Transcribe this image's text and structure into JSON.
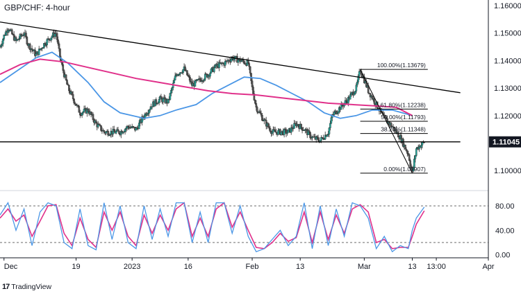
{
  "chart_data": {
    "type": "candlestick",
    "title": "GBP/CHF: 4-hour",
    "price_axis": {
      "ylim": [
        1.0935,
        1.162
      ],
      "ticks": [
        {
          "value": 1.16,
          "label": "1.16000"
        },
        {
          "value": 1.15,
          "label": "1.15000"
        },
        {
          "value": 1.14,
          "label": "1.14000"
        },
        {
          "value": 1.13,
          "label": "1.13000"
        },
        {
          "value": 1.12,
          "label": "1.12000"
        },
        {
          "value": 1.1,
          "label": "1.10000"
        }
      ],
      "current_price": {
        "value": 1.11045,
        "label": "1.11045"
      }
    },
    "time_axis": {
      "range": [
        "2022-11-30",
        "2023-04-01"
      ],
      "ticks": [
        {
          "date": "2022-12-01",
          "label": "Dec"
        },
        {
          "date": "2022-12-19",
          "label": "19"
        },
        {
          "date": "2023-01-02",
          "label": "2023"
        },
        {
          "date": "2023-01-16",
          "label": "16"
        },
        {
          "date": "2023-02-01",
          "label": "Feb"
        },
        {
          "date": "2023-02-13",
          "label": "13"
        },
        {
          "date": "2023-03-01",
          "label": "Mar"
        },
        {
          "date": "2023-03-13",
          "label": "13"
        },
        {
          "date": "2023-03-19",
          "label": "13:00"
        },
        {
          "date": "2023-04-01",
          "label": "Apr"
        }
      ]
    },
    "price_path": [
      [
        "2022-11-30",
        1.145
      ],
      [
        "2022-12-01",
        1.149
      ],
      [
        "2022-12-02",
        1.152
      ],
      [
        "2022-12-04",
        1.147
      ],
      [
        "2022-12-06",
        1.15
      ],
      [
        "2022-12-07",
        1.146
      ],
      [
        "2022-12-09",
        1.142
      ],
      [
        "2022-12-11",
        1.146
      ],
      [
        "2022-12-13",
        1.149
      ],
      [
        "2022-12-14",
        1.15
      ],
      [
        "2022-12-15",
        1.141
      ],
      [
        "2022-12-16",
        1.135
      ],
      [
        "2022-12-17",
        1.13
      ],
      [
        "2022-12-18",
        1.127
      ],
      [
        "2022-12-20",
        1.121
      ],
      [
        "2022-12-22",
        1.122
      ],
      [
        "2022-12-24",
        1.117
      ],
      [
        "2022-12-26",
        1.114
      ],
      [
        "2022-12-28",
        1.114
      ],
      [
        "2022-12-30",
        1.114
      ],
      [
        "2023-01-01",
        1.116
      ],
      [
        "2023-01-03",
        1.115
      ],
      [
        "2023-01-05",
        1.12
      ],
      [
        "2023-01-07",
        1.124
      ],
      [
        "2023-01-09",
        1.126
      ],
      [
        "2023-01-11",
        1.125
      ],
      [
        "2023-01-13",
        1.135
      ],
      [
        "2023-01-15",
        1.137
      ],
      [
        "2023-01-17",
        1.131
      ],
      [
        "2023-01-19",
        1.133
      ],
      [
        "2023-01-21",
        1.135
      ],
      [
        "2023-01-23",
        1.138
      ],
      [
        "2023-01-25",
        1.139
      ],
      [
        "2023-01-27",
        1.141
      ],
      [
        "2023-01-29",
        1.14
      ],
      [
        "2023-01-31",
        1.139
      ],
      [
        "2023-02-01",
        1.13
      ],
      [
        "2023-02-02",
        1.123
      ],
      [
        "2023-02-04",
        1.118
      ],
      [
        "2023-02-06",
        1.114
      ],
      [
        "2023-02-08",
        1.114
      ],
      [
        "2023-02-10",
        1.114
      ],
      [
        "2023-02-12",
        1.117
      ],
      [
        "2023-02-14",
        1.115
      ],
      [
        "2023-02-16",
        1.112
      ],
      [
        "2023-02-18",
        1.111
      ],
      [
        "2023-02-20",
        1.114
      ],
      [
        "2023-02-21",
        1.12
      ],
      [
        "2023-02-23",
        1.123
      ],
      [
        "2023-02-25",
        1.126
      ],
      [
        "2023-02-27",
        1.13
      ],
      [
        "2023-02-28",
        1.1368
      ],
      [
        "2023-03-02",
        1.129
      ],
      [
        "2023-03-04",
        1.124
      ],
      [
        "2023-03-06",
        1.119
      ],
      [
        "2023-03-08",
        1.116
      ],
      [
        "2023-03-10",
        1.112
      ],
      [
        "2023-03-12",
        1.106
      ],
      [
        "2023-03-13",
        1.0991
      ],
      [
        "2023-03-14",
        1.108
      ],
      [
        "2023-03-16",
        1.1104
      ]
    ],
    "moving_averages": [
      {
        "name": "blue",
        "color": "#4a96e6",
        "points": [
          [
            "2022-11-30",
            1.132
          ],
          [
            "2022-12-05",
            1.137
          ],
          [
            "2022-12-09",
            1.141
          ],
          [
            "2022-12-13",
            1.143
          ],
          [
            "2022-12-17",
            1.139
          ],
          [
            "2022-12-22",
            1.132
          ],
          [
            "2022-12-26",
            1.125
          ],
          [
            "2022-12-30",
            1.121
          ],
          [
            "2023-01-05",
            1.119
          ],
          [
            "2023-01-09",
            1.12
          ],
          [
            "2023-01-13",
            1.122
          ],
          [
            "2023-01-18",
            1.124
          ],
          [
            "2023-01-22",
            1.128
          ],
          [
            "2023-01-26",
            1.131
          ],
          [
            "2023-01-30",
            1.134
          ],
          [
            "2023-02-03",
            1.1335
          ],
          [
            "2023-02-07",
            1.131
          ],
          [
            "2023-02-11",
            1.128
          ],
          [
            "2023-02-15",
            1.125
          ],
          [
            "2023-02-19",
            1.121
          ],
          [
            "2023-02-23",
            1.119
          ],
          [
            "2023-02-27",
            1.12
          ],
          [
            "2023-03-03",
            1.122
          ],
          [
            "2023-03-08",
            1.122
          ],
          [
            "2023-03-13",
            1.12
          ]
        ]
      },
      {
        "name": "magenta",
        "color": "#e0308a",
        "points": [
          [
            "2022-11-30",
            1.135
          ],
          [
            "2022-12-05",
            1.1385
          ],
          [
            "2022-12-10",
            1.1405
          ],
          [
            "2022-12-16",
            1.1395
          ],
          [
            "2022-12-22",
            1.1375
          ],
          [
            "2022-12-28",
            1.1355
          ],
          [
            "2023-01-03",
            1.1335
          ],
          [
            "2023-01-09",
            1.132
          ],
          [
            "2023-01-15",
            1.1305
          ],
          [
            "2023-01-21",
            1.129
          ],
          [
            "2023-01-27",
            1.128
          ],
          [
            "2023-02-02",
            1.1275
          ],
          [
            "2023-02-08",
            1.1265
          ],
          [
            "2023-02-14",
            1.1255
          ],
          [
            "2023-02-20",
            1.1245
          ],
          [
            "2023-02-26",
            1.124
          ],
          [
            "2023-03-04",
            1.1235
          ],
          [
            "2023-03-09",
            1.123
          ],
          [
            "2023-03-13",
            1.12
          ]
        ]
      }
    ],
    "trendlines": [
      {
        "name": "descending-resistance",
        "color": "#000000",
        "from": [
          "2022-11-30",
          1.154
        ],
        "to": [
          "2023-03-25",
          1.1283
        ]
      },
      {
        "name": "horizontal-support",
        "color": "#000000",
        "from": [
          "2022-11-30",
          1.11045
        ],
        "to": [
          "2023-03-25",
          1.11045
        ]
      }
    ],
    "fibonacci": {
      "high": 1.13679,
      "low": 1.09907,
      "levels": [
        {
          "ratio": "100.00%",
          "value": 1.13679,
          "label": "100.00%(1.13679)"
        },
        {
          "ratio": "61.80%",
          "value": 1.12238,
          "label": "61.80%(1.12238)"
        },
        {
          "ratio": "50.00%",
          "value": 1.11793,
          "label": "50.00%(1.11793)"
        },
        {
          "ratio": "38.20%",
          "value": 1.11348,
          "label": "38.20%(1.11348)"
        },
        {
          "ratio": "0.00%",
          "value": 1.09907,
          "label": "0.00%(1.09907)"
        }
      ]
    },
    "stochastic": {
      "ylim": [
        -5,
        105
      ],
      "ticks": [
        {
          "value": 80,
          "label": "80.00"
        },
        {
          "value": 40,
          "label": "40.00"
        },
        {
          "value": 0,
          "label": "0.00"
        }
      ],
      "bands": [
        80,
        20
      ],
      "k_color": "#4a96e6",
      "d_color": "#e0308a",
      "k": [
        [
          "2022-11-30",
          65
        ],
        [
          "2022-12-02",
          85
        ],
        [
          "2022-12-04",
          40
        ],
        [
          "2022-12-06",
          75
        ],
        [
          "2022-12-08",
          15
        ],
        [
          "2022-12-10",
          70
        ],
        [
          "2022-12-12",
          85
        ],
        [
          "2022-12-14",
          80
        ],
        [
          "2022-12-16",
          20
        ],
        [
          "2022-12-18",
          10
        ],
        [
          "2022-12-20",
          75
        ],
        [
          "2022-12-22",
          15
        ],
        [
          "2022-12-24",
          8
        ],
        [
          "2022-12-26",
          85
        ],
        [
          "2022-12-28",
          25
        ],
        [
          "2022-12-30",
          80
        ],
        [
          "2023-01-01",
          20
        ],
        [
          "2023-01-03",
          10
        ],
        [
          "2023-01-05",
          80
        ],
        [
          "2023-01-07",
          25
        ],
        [
          "2023-01-09",
          75
        ],
        [
          "2023-01-11",
          30
        ],
        [
          "2023-01-13",
          85
        ],
        [
          "2023-01-15",
          85
        ],
        [
          "2023-01-17",
          20
        ],
        [
          "2023-01-19",
          70
        ],
        [
          "2023-01-21",
          20
        ],
        [
          "2023-01-23",
          85
        ],
        [
          "2023-01-25",
          85
        ],
        [
          "2023-01-27",
          35
        ],
        [
          "2023-01-29",
          80
        ],
        [
          "2023-01-31",
          30
        ],
        [
          "2023-02-02",
          5
        ],
        [
          "2023-02-04",
          10
        ],
        [
          "2023-02-06",
          25
        ],
        [
          "2023-02-08",
          40
        ],
        [
          "2023-02-10",
          15
        ],
        [
          "2023-02-12",
          30
        ],
        [
          "2023-02-14",
          85
        ],
        [
          "2023-02-16",
          10
        ],
        [
          "2023-02-18",
          80
        ],
        [
          "2023-02-20",
          15
        ],
        [
          "2023-02-22",
          75
        ],
        [
          "2023-02-24",
          30
        ],
        [
          "2023-02-26",
          85
        ],
        [
          "2023-02-28",
          80
        ],
        [
          "2023-03-02",
          60
        ],
        [
          "2023-03-04",
          10
        ],
        [
          "2023-03-06",
          30
        ],
        [
          "2023-03-08",
          5
        ],
        [
          "2023-03-10",
          15
        ],
        [
          "2023-03-12",
          10
        ],
        [
          "2023-03-13",
          40
        ],
        [
          "2023-03-14",
          60
        ],
        [
          "2023-03-16",
          78
        ]
      ],
      "d": [
        [
          "2022-11-30",
          60
        ],
        [
          "2022-12-02",
          75
        ],
        [
          "2022-12-04",
          55
        ],
        [
          "2022-12-06",
          65
        ],
        [
          "2022-12-08",
          30
        ],
        [
          "2022-12-10",
          55
        ],
        [
          "2022-12-12",
          80
        ],
        [
          "2022-12-14",
          82
        ],
        [
          "2022-12-16",
          35
        ],
        [
          "2022-12-18",
          15
        ],
        [
          "2022-12-20",
          60
        ],
        [
          "2022-12-22",
          25
        ],
        [
          "2022-12-24",
          12
        ],
        [
          "2022-12-26",
          70
        ],
        [
          "2022-12-28",
          40
        ],
        [
          "2022-12-30",
          70
        ],
        [
          "2023-01-01",
          30
        ],
        [
          "2023-01-03",
          15
        ],
        [
          "2023-01-05",
          65
        ],
        [
          "2023-01-07",
          35
        ],
        [
          "2023-01-09",
          65
        ],
        [
          "2023-01-11",
          40
        ],
        [
          "2023-01-13",
          75
        ],
        [
          "2023-01-15",
          85
        ],
        [
          "2023-01-17",
          30
        ],
        [
          "2023-01-19",
          60
        ],
        [
          "2023-01-21",
          30
        ],
        [
          "2023-01-23",
          75
        ],
        [
          "2023-01-25",
          85
        ],
        [
          "2023-01-27",
          45
        ],
        [
          "2023-01-29",
          70
        ],
        [
          "2023-01-31",
          40
        ],
        [
          "2023-02-02",
          12
        ],
        [
          "2023-02-04",
          10
        ],
        [
          "2023-02-06",
          20
        ],
        [
          "2023-02-08",
          35
        ],
        [
          "2023-02-10",
          22
        ],
        [
          "2023-02-12",
          28
        ],
        [
          "2023-02-14",
          70
        ],
        [
          "2023-02-16",
          20
        ],
        [
          "2023-02-18",
          70
        ],
        [
          "2023-02-20",
          25
        ],
        [
          "2023-02-22",
          65
        ],
        [
          "2023-02-24",
          35
        ],
        [
          "2023-02-26",
          75
        ],
        [
          "2023-02-28",
          82
        ],
        [
          "2023-03-02",
          70
        ],
        [
          "2023-03-04",
          20
        ],
        [
          "2023-03-06",
          25
        ],
        [
          "2023-03-08",
          10
        ],
        [
          "2023-03-10",
          12
        ],
        [
          "2023-03-12",
          12
        ],
        [
          "2023-03-13",
          30
        ],
        [
          "2023-03-14",
          50
        ],
        [
          "2023-03-16",
          72
        ]
      ]
    },
    "colors": {
      "up": "#26a69a",
      "down": "#555555",
      "bar": "#2b2b2b",
      "axis": "#131722",
      "grid": "#e0e3eb"
    }
  },
  "brand": {
    "logo": "17",
    "name": "TradingView"
  }
}
